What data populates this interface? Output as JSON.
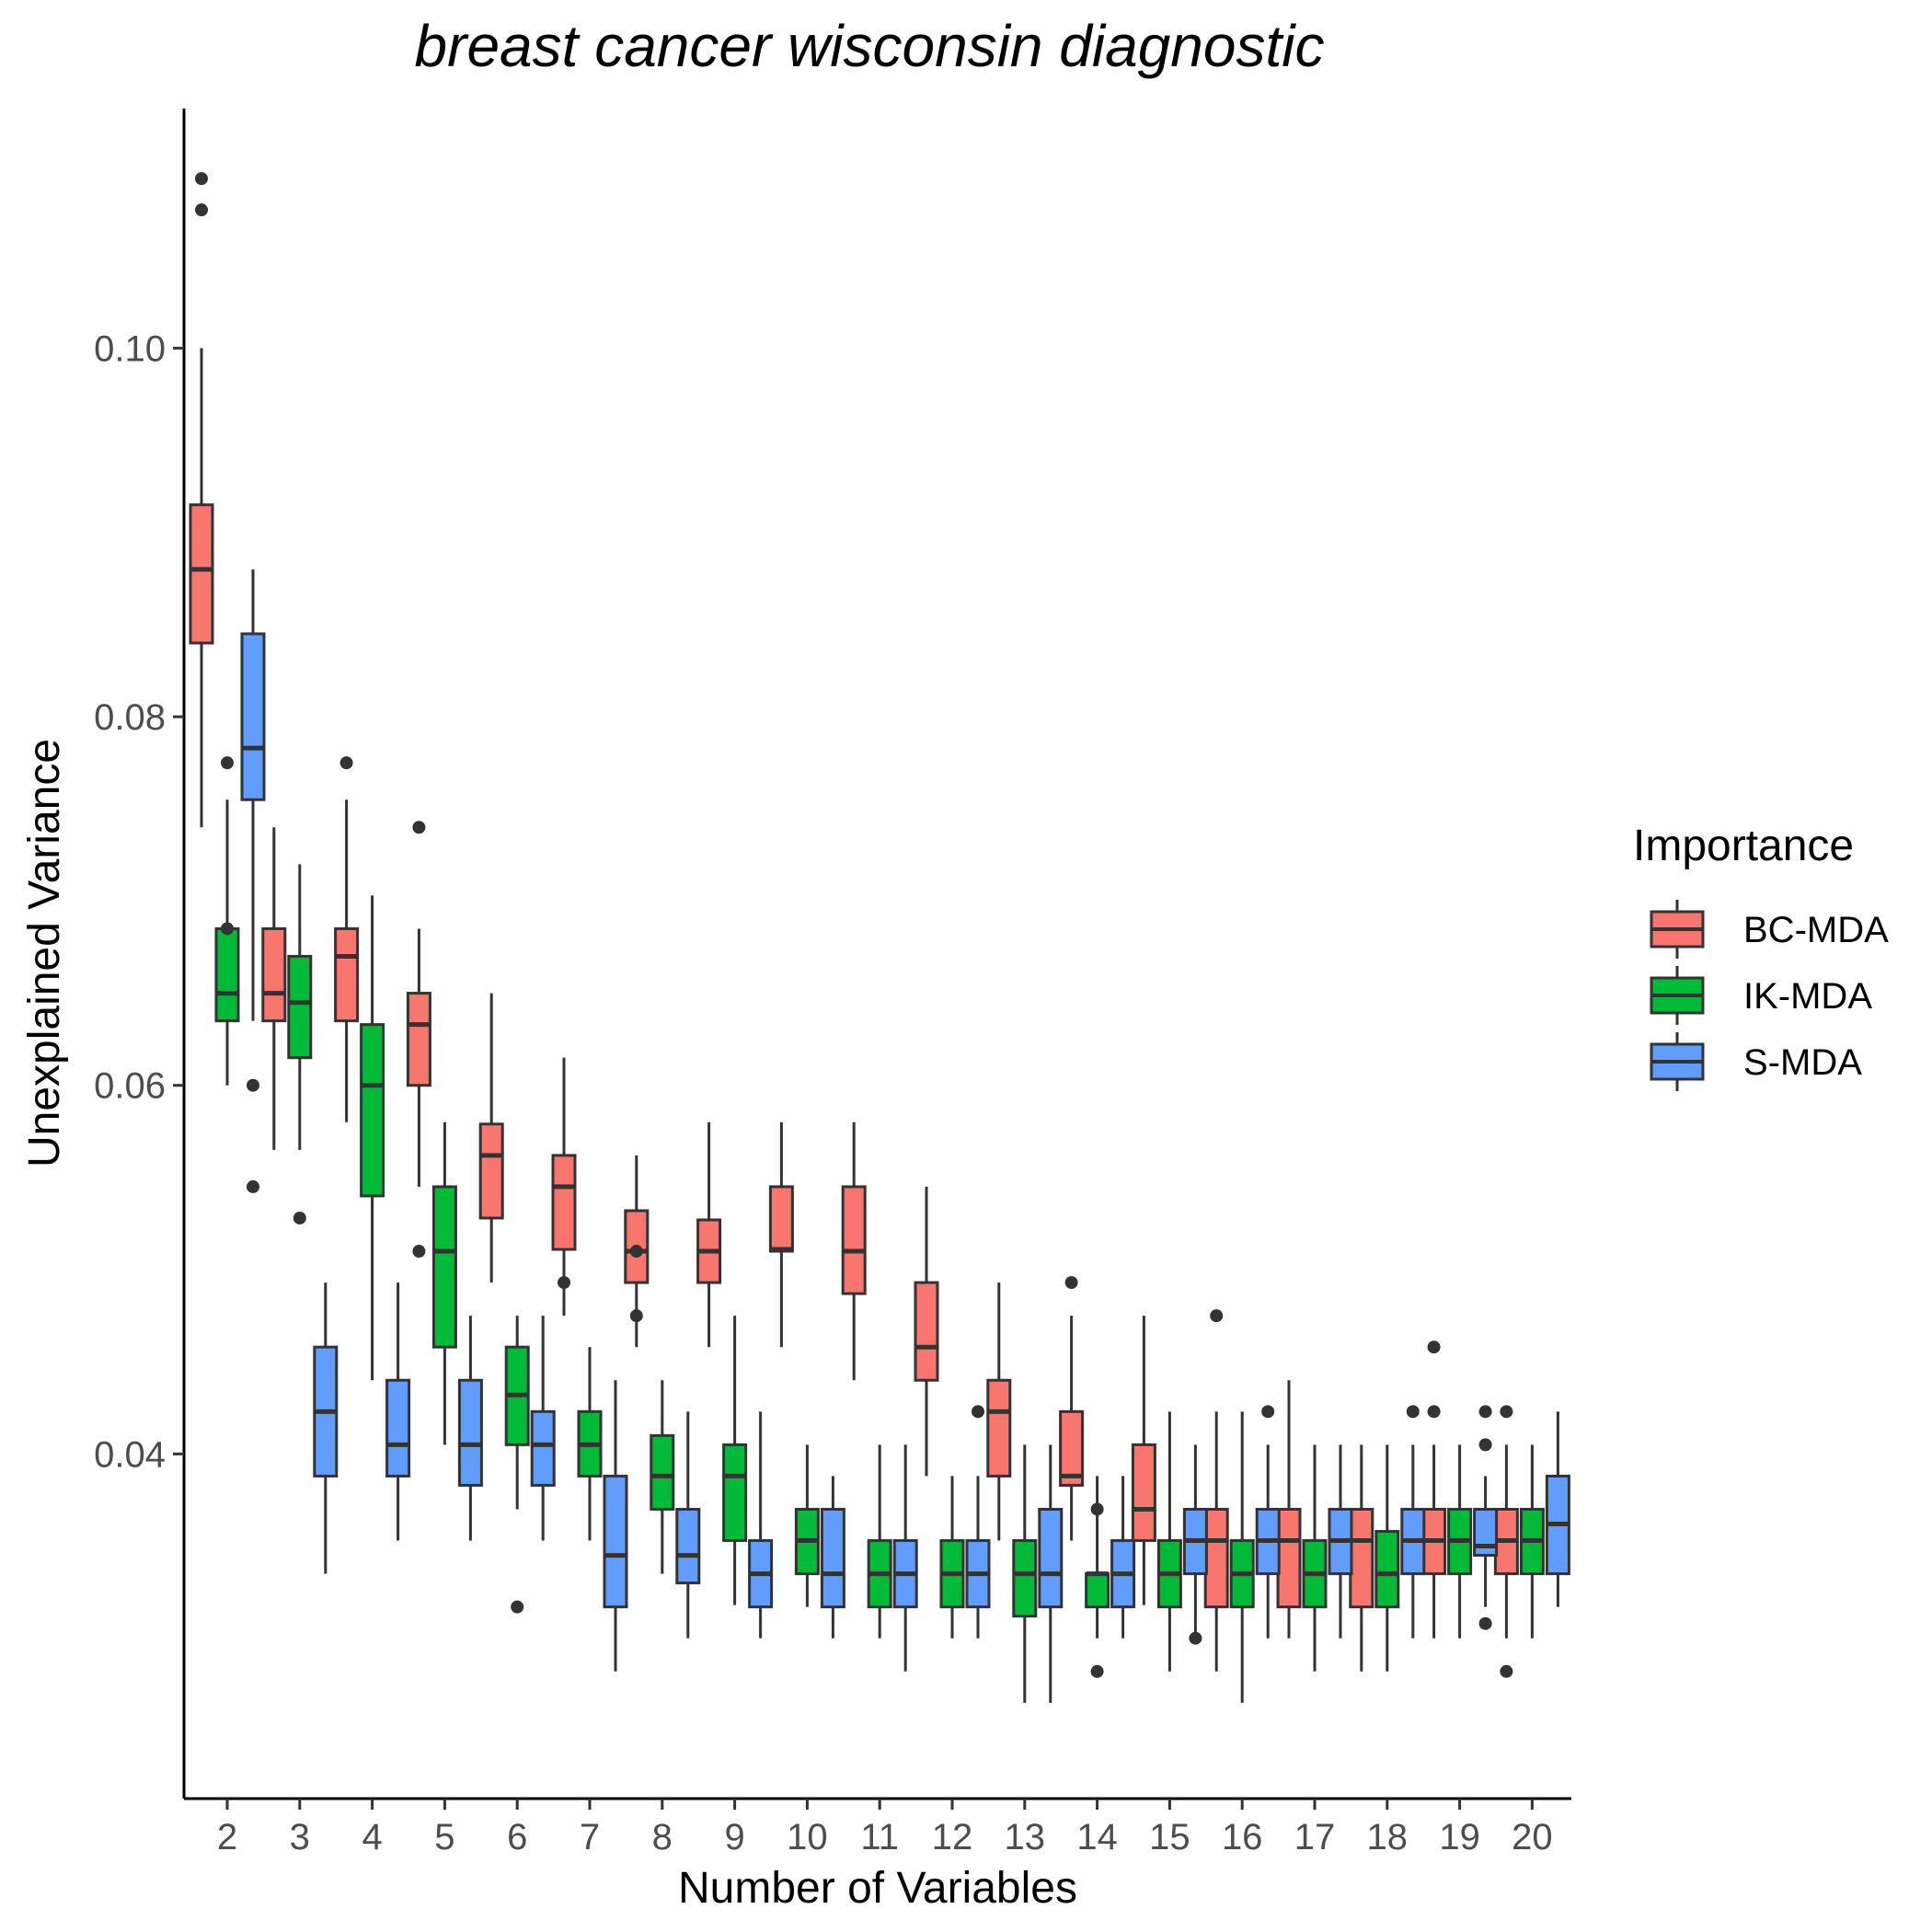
{
  "chart_data": {
    "type": "boxplot",
    "title": "breast cancer wisconsin diagnostic",
    "xlabel": "Number of Variables",
    "ylabel": "Unexplained Variance",
    "categories": [
      "2",
      "3",
      "4",
      "5",
      "6",
      "7",
      "8",
      "9",
      "10",
      "11",
      "12",
      "13",
      "14",
      "15",
      "16",
      "17",
      "18",
      "19",
      "20"
    ],
    "y_ticks": [
      "0.04",
      "0.06",
      "0.08",
      "0.10"
    ],
    "ylim": [
      0.0213,
      0.113
    ],
    "grid": false,
    "legend": {
      "title": "Importance",
      "placement": "right",
      "entries": [
        "BC-MDA",
        "IK-MDA",
        "S-MDA"
      ]
    },
    "colors": {
      "BC-MDA": "#F8766D",
      "IK-MDA": "#00BA38",
      "S-MDA": "#619CFF",
      "outline": "#333333"
    },
    "series": [
      {
        "name": "BC-MDA",
        "boxes": [
          {
            "min": 0.074,
            "q1": 0.084,
            "median": 0.088,
            "q3": 0.0915,
            "max": 0.1,
            "outliers": [
              0.1092,
              0.1075
            ]
          },
          {
            "min": 0.0565,
            "q1": 0.0635,
            "median": 0.065,
            "q3": 0.0685,
            "max": 0.074,
            "outliers": []
          },
          {
            "min": 0.058,
            "q1": 0.0635,
            "median": 0.067,
            "q3": 0.0685,
            "max": 0.0755,
            "outliers": [
              0.0775
            ]
          },
          {
            "min": 0.0545,
            "q1": 0.06,
            "median": 0.0633,
            "q3": 0.065,
            "max": 0.0685,
            "outliers": [
              0.074,
              0.051
            ]
          },
          {
            "min": 0.0493,
            "q1": 0.0528,
            "median": 0.0562,
            "q3": 0.0579,
            "max": 0.065,
            "outliers": []
          },
          {
            "min": 0.0475,
            "q1": 0.0511,
            "median": 0.0545,
            "q3": 0.0562,
            "max": 0.0615,
            "outliers": [
              0.0493
            ]
          },
          {
            "min": 0.0458,
            "q1": 0.0493,
            "median": 0.051,
            "q3": 0.0532,
            "max": 0.0562,
            "outliers": [
              0.051,
              0.0475
            ]
          },
          {
            "min": 0.0458,
            "q1": 0.0493,
            "median": 0.051,
            "q3": 0.0527,
            "max": 0.058,
            "outliers": []
          },
          {
            "min": 0.0458,
            "q1": 0.051,
            "median": 0.0511,
            "q3": 0.0545,
            "max": 0.058,
            "outliers": []
          },
          {
            "min": 0.044,
            "q1": 0.0487,
            "median": 0.051,
            "q3": 0.0545,
            "max": 0.058,
            "outliers": []
          },
          {
            "min": 0.0388,
            "q1": 0.044,
            "median": 0.0458,
            "q3": 0.0493,
            "max": 0.0545,
            "outliers": []
          },
          {
            "min": 0.0353,
            "q1": 0.0388,
            "median": 0.0423,
            "q3": 0.044,
            "max": 0.0493,
            "outliers": []
          },
          {
            "min": 0.0353,
            "q1": 0.0383,
            "median": 0.0388,
            "q3": 0.0423,
            "max": 0.0475,
            "outliers": [
              0.0493
            ]
          },
          {
            "min": 0.0318,
            "q1": 0.0353,
            "median": 0.037,
            "q3": 0.0405,
            "max": 0.0475,
            "outliers": []
          },
          {
            "min": 0.0282,
            "q1": 0.0317,
            "median": 0.0353,
            "q3": 0.037,
            "max": 0.0423,
            "outliers": [
              0.0475
            ]
          },
          {
            "min": 0.03,
            "q1": 0.0317,
            "median": 0.0353,
            "q3": 0.037,
            "max": 0.044,
            "outliers": []
          },
          {
            "min": 0.0282,
            "q1": 0.0317,
            "median": 0.0353,
            "q3": 0.037,
            "max": 0.0405,
            "outliers": []
          },
          {
            "min": 0.03,
            "q1": 0.0335,
            "median": 0.0353,
            "q3": 0.037,
            "max": 0.0405,
            "outliers": [
              0.0458,
              0.0423
            ]
          },
          {
            "min": 0.03,
            "q1": 0.0335,
            "median": 0.0353,
            "q3": 0.037,
            "max": 0.0405,
            "outliers": [
              0.0423,
              0.0282
            ]
          }
        ]
      },
      {
        "name": "IK-MDA",
        "boxes": [
          {
            "min": 0.06,
            "q1": 0.0635,
            "median": 0.065,
            "q3": 0.0685,
            "max": 0.0755,
            "outliers": [
              0.0775,
              0.0685
            ]
          },
          {
            "min": 0.0565,
            "q1": 0.0615,
            "median": 0.0645,
            "q3": 0.067,
            "max": 0.072,
            "outliers": [
              0.0528
            ]
          },
          {
            "min": 0.044,
            "q1": 0.054,
            "median": 0.06,
            "q3": 0.0633,
            "max": 0.0703,
            "outliers": []
          },
          {
            "min": 0.0405,
            "q1": 0.0458,
            "median": 0.051,
            "q3": 0.0545,
            "max": 0.058,
            "outliers": []
          },
          {
            "min": 0.037,
            "q1": 0.0405,
            "median": 0.0432,
            "q3": 0.0458,
            "max": 0.0475,
            "outliers": [
              0.0317
            ]
          },
          {
            "min": 0.0353,
            "q1": 0.0388,
            "median": 0.0405,
            "q3": 0.0423,
            "max": 0.0458,
            "outliers": []
          },
          {
            "min": 0.0335,
            "q1": 0.037,
            "median": 0.0388,
            "q3": 0.041,
            "max": 0.044,
            "outliers": []
          },
          {
            "min": 0.0318,
            "q1": 0.0353,
            "median": 0.0388,
            "q3": 0.0405,
            "max": 0.0475,
            "outliers": []
          },
          {
            "min": 0.0317,
            "q1": 0.0335,
            "median": 0.0353,
            "q3": 0.037,
            "max": 0.0405,
            "outliers": []
          },
          {
            "min": 0.03,
            "q1": 0.0317,
            "median": 0.0335,
            "q3": 0.0353,
            "max": 0.0405,
            "outliers": []
          },
          {
            "min": 0.03,
            "q1": 0.0317,
            "median": 0.0335,
            "q3": 0.0353,
            "max": 0.0388,
            "outliers": []
          },
          {
            "min": 0.0265,
            "q1": 0.0312,
            "median": 0.0335,
            "q3": 0.0353,
            "max": 0.0405,
            "outliers": []
          },
          {
            "min": 0.03,
            "q1": 0.0317,
            "median": 0.0335,
            "q3": 0.0335,
            "max": 0.0388,
            "outliers": [
              0.037,
              0.0282
            ]
          },
          {
            "min": 0.0282,
            "q1": 0.0317,
            "median": 0.0335,
            "q3": 0.0353,
            "max": 0.0423,
            "outliers": []
          },
          {
            "min": 0.0265,
            "q1": 0.0317,
            "median": 0.0335,
            "q3": 0.0353,
            "max": 0.0423,
            "outliers": []
          },
          {
            "min": 0.0282,
            "q1": 0.0317,
            "median": 0.0335,
            "q3": 0.0353,
            "max": 0.0405,
            "outliers": []
          },
          {
            "min": 0.0282,
            "q1": 0.0317,
            "median": 0.0335,
            "q3": 0.0358,
            "max": 0.0405,
            "outliers": []
          },
          {
            "min": 0.03,
            "q1": 0.0335,
            "median": 0.0353,
            "q3": 0.037,
            "max": 0.0405,
            "outliers": []
          },
          {
            "min": 0.03,
            "q1": 0.0335,
            "median": 0.0353,
            "q3": 0.037,
            "max": 0.0405,
            "outliers": []
          }
        ]
      },
      {
        "name": "S-MDA",
        "boxes": [
          {
            "min": 0.0635,
            "q1": 0.0755,
            "median": 0.0783,
            "q3": 0.0845,
            "max": 0.088,
            "outliers": [
              0.06,
              0.0545
            ]
          },
          {
            "min": 0.0335,
            "q1": 0.0388,
            "median": 0.0423,
            "q3": 0.0458,
            "max": 0.0493,
            "outliers": []
          },
          {
            "min": 0.0353,
            "q1": 0.0388,
            "median": 0.0405,
            "q3": 0.044,
            "max": 0.0493,
            "outliers": []
          },
          {
            "min": 0.0353,
            "q1": 0.0383,
            "median": 0.0405,
            "q3": 0.044,
            "max": 0.0475,
            "outliers": []
          },
          {
            "min": 0.0353,
            "q1": 0.0383,
            "median": 0.0405,
            "q3": 0.0423,
            "max": 0.0475,
            "outliers": []
          },
          {
            "min": 0.0282,
            "q1": 0.0317,
            "median": 0.0345,
            "q3": 0.0388,
            "max": 0.044,
            "outliers": []
          },
          {
            "min": 0.03,
            "q1": 0.033,
            "median": 0.0345,
            "q3": 0.037,
            "max": 0.0423,
            "outliers": []
          },
          {
            "min": 0.03,
            "q1": 0.0317,
            "median": 0.0335,
            "q3": 0.0353,
            "max": 0.0423,
            "outliers": []
          },
          {
            "min": 0.03,
            "q1": 0.0317,
            "median": 0.0335,
            "q3": 0.037,
            "max": 0.0388,
            "outliers": []
          },
          {
            "min": 0.0282,
            "q1": 0.0317,
            "median": 0.0335,
            "q3": 0.0353,
            "max": 0.0405,
            "outliers": []
          },
          {
            "min": 0.03,
            "q1": 0.0317,
            "median": 0.0335,
            "q3": 0.0353,
            "max": 0.0388,
            "outliers": [
              0.0423
            ]
          },
          {
            "min": 0.0265,
            "q1": 0.0317,
            "median": 0.0335,
            "q3": 0.037,
            "max": 0.0405,
            "outliers": []
          },
          {
            "min": 0.03,
            "q1": 0.0317,
            "median": 0.0335,
            "q3": 0.0353,
            "max": 0.0388,
            "outliers": []
          },
          {
            "min": 0.03,
            "q1": 0.0335,
            "median": 0.0353,
            "q3": 0.037,
            "max": 0.0405,
            "outliers": [
              0.03
            ]
          },
          {
            "min": 0.03,
            "q1": 0.0335,
            "median": 0.0353,
            "q3": 0.037,
            "max": 0.0405,
            "outliers": [
              0.0423
            ]
          },
          {
            "min": 0.03,
            "q1": 0.0335,
            "median": 0.0353,
            "q3": 0.037,
            "max": 0.0405,
            "outliers": []
          },
          {
            "min": 0.03,
            "q1": 0.0335,
            "median": 0.0353,
            "q3": 0.037,
            "max": 0.0405,
            "outliers": [
              0.0423
            ]
          },
          {
            "min": 0.0317,
            "q1": 0.0345,
            "median": 0.035,
            "q3": 0.037,
            "max": 0.0388,
            "outliers": [
              0.0423,
              0.0405,
              0.0308
            ]
          },
          {
            "min": 0.0317,
            "q1": 0.0335,
            "median": 0.0362,
            "q3": 0.0388,
            "max": 0.0423,
            "outliers": []
          }
        ]
      }
    ]
  }
}
